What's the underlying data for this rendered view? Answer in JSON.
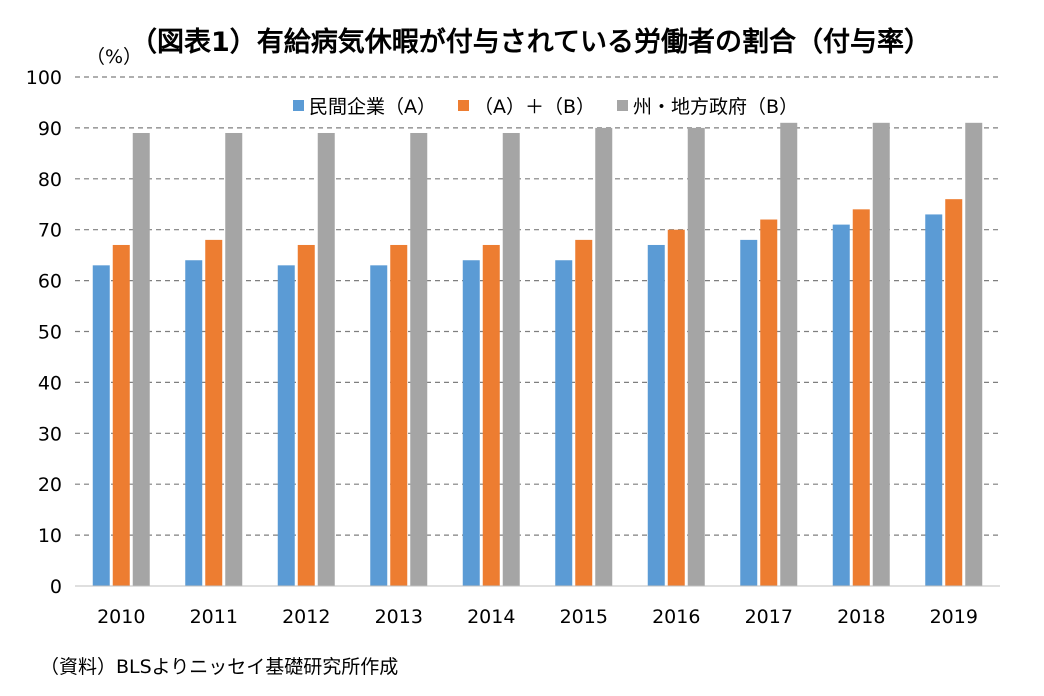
{
  "title": "（図表1）有給病気休暇が付与されている労働者の割合（付与率）",
  "unit": "（%）",
  "source": "（資料）BLSよりニッセイ基礎研究所作成",
  "chart_data": {
    "type": "bar",
    "categories": [
      "2010",
      "2011",
      "2012",
      "2013",
      "2014",
      "2015",
      "2016",
      "2017",
      "2018",
      "2019"
    ],
    "series": [
      {
        "name": "民間企業（A）",
        "color": "#5B9BD5",
        "values": [
          63,
          64,
          63,
          63,
          64,
          64,
          67,
          68,
          71,
          73
        ]
      },
      {
        "name": "（A）＋（B）",
        "color": "#ED7D31",
        "values": [
          67,
          68,
          67,
          67,
          67,
          68,
          70,
          72,
          74,
          76
        ]
      },
      {
        "name": "州・地方政府（B）",
        "color": "#A5A5A5",
        "values": [
          89,
          89,
          89,
          89,
          89,
          90,
          90,
          91,
          91,
          91
        ]
      }
    ],
    "y_ticks": [
      "0",
      "10",
      "20",
      "30",
      "40",
      "50",
      "60",
      "70",
      "80",
      "90",
      "100"
    ],
    "ylim": [
      0,
      100
    ],
    "grid": true,
    "legend_position": "top-center"
  }
}
